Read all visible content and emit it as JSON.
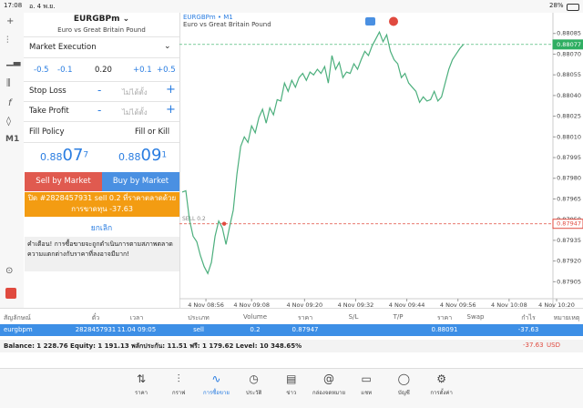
{
  "status_bar": {
    "time": "17:08",
    "date": "อ. 4 พ.ย.",
    "battery": "28%"
  },
  "toolbar": {
    "timeframe": "M1"
  },
  "order": {
    "symbol": "EURGBPm",
    "description": "Euro vs Great Britain Pound",
    "execution": "Market Execution",
    "volume_steps": [
      "-0.5",
      "-0.1",
      "+0.1",
      "+0.5"
    ],
    "volume": "0.20",
    "stop_loss": {
      "label": "Stop Loss",
      "value": "ไม่ได้ตั้ง"
    },
    "take_profit": {
      "label": "Take Profit",
      "value": "ไม่ได้ตั้ง"
    },
    "fill_policy": {
      "label": "Fill Policy",
      "value": "Fill or Kill"
    },
    "bid": {
      "prefix": "0.88",
      "big": "07",
      "sup": "7"
    },
    "ask": {
      "prefix": "0.88",
      "big": "09",
      "sup": "1"
    },
    "sell_button": "Sell by Market",
    "buy_button": "Buy by Market",
    "close_notice": "ปิด #2828457931 sell 0.2 ที่ราคาตลาดด้วยการขาดทุน -37.63",
    "cancel": "ยกเลิก",
    "warning": "คำเตือน! การซื้อขายจะถูกดำเนินการตามสภาพตลาด ความแตกต่างกับราคาที่ลงอาจมีมาก!"
  },
  "chart_data": {
    "type": "line",
    "title": "EURGBPm • M1",
    "subtitle": "Euro vs Great Britain Pound",
    "color": "#4caf7d",
    "grid": false,
    "values": [
      0.8797,
      0.87971,
      0.8795,
      0.87938,
      0.87934,
      0.87924,
      0.87916,
      0.87911,
      0.87919,
      0.87938,
      0.87949,
      0.87944,
      0.87932,
      0.87945,
      0.87957,
      0.87983,
      0.88003,
      0.8801,
      0.88006,
      0.88018,
      0.88013,
      0.88024,
      0.8803,
      0.8802,
      0.88031,
      0.88026,
      0.88037,
      0.88036,
      0.88049,
      0.88043,
      0.88051,
      0.88046,
      0.88053,
      0.88056,
      0.88051,
      0.88057,
      0.88055,
      0.88059,
      0.88056,
      0.88061,
      0.88049,
      0.88069,
      0.88059,
      0.88064,
      0.88053,
      0.88057,
      0.88056,
      0.88063,
      0.88059,
      0.88066,
      0.88072,
      0.88069,
      0.88076,
      0.88081,
      0.88086,
      0.88079,
      0.88084,
      0.88072,
      0.88066,
      0.88063,
      0.88053,
      0.88056,
      0.88049,
      0.88046,
      0.88043,
      0.88035,
      0.88039,
      0.88036,
      0.88037,
      0.88043,
      0.88036,
      0.88039,
      0.88049,
      0.88059,
      0.88066,
      0.8807,
      0.88074,
      0.88077
    ],
    "xlim": [
      0,
      103
    ],
    "xticks": [
      {
        "value": 6.5,
        "label": "4 Nov 08:56"
      },
      {
        "value": 19,
        "label": "4 Nov 09:08"
      },
      {
        "value": 33.5,
        "label": "4 Nov 09:20"
      },
      {
        "value": 47.5,
        "label": "4 Nov 09:32"
      },
      {
        "value": 61.5,
        "label": "4 Nov 09:44"
      },
      {
        "value": 75.5,
        "label": "4 Nov 09:56"
      },
      {
        "value": 89.5,
        "label": "4 Nov 10:08"
      },
      {
        "value": 102.5,
        "label": "4 Nov 10:20"
      }
    ],
    "ylim": [
      0.87894,
      0.881
    ],
    "yticks": [
      0.88085,
      {
        "value": 0.8807,
        "label": "0.88070"
      },
      0.88055,
      {
        "value": 0.8804,
        "label": "0.88040"
      },
      0.88025,
      {
        "value": 0.8801,
        "label": "0.88010"
      },
      0.87995,
      {
        "value": 0.8798,
        "label": "0.87980"
      },
      0.87965,
      {
        "value": 0.8795,
        "label": "0.87950"
      },
      0.87935,
      {
        "value": 0.8792,
        "label": "0.87920"
      },
      0.87905
    ],
    "price_line": {
      "value": 0.88077,
      "color": "#2fae62"
    },
    "position_line": {
      "value": 0.87947,
      "label": "SELL 0.2",
      "color": "#e04a3f"
    }
  },
  "positions": {
    "columns": [
      "สัญลักษณ์",
      "ตั๋ว",
      "เวลา",
      "ประเภท",
      "Volume",
      "ราคา",
      "S/L",
      "T/P",
      "ราคา",
      "Swap",
      "กำไร",
      "หมายเหตุ"
    ],
    "rows": [
      [
        "eurgbpm",
        "2828457931",
        "11.04 09:05",
        "sell",
        "0.2",
        "0.87947",
        null,
        null,
        "0.88091",
        null,
        "-37.63",
        null
      ]
    ],
    "summary": "Balance: 1 228.76 Equity: 1 191.13 พลักประกัน: 11.51 ฟรี: 1 179.62 Level: 10 348.65%",
    "profit": "-37.63",
    "currency": "USD"
  },
  "tabs": [
    "ราคา",
    "กราฟ",
    "การซื้อขาย",
    "ประวัติ",
    "ข่าว",
    "กล่องจดหมาย",
    "แชท",
    "บัญชี",
    "การตั้งค่า"
  ]
}
